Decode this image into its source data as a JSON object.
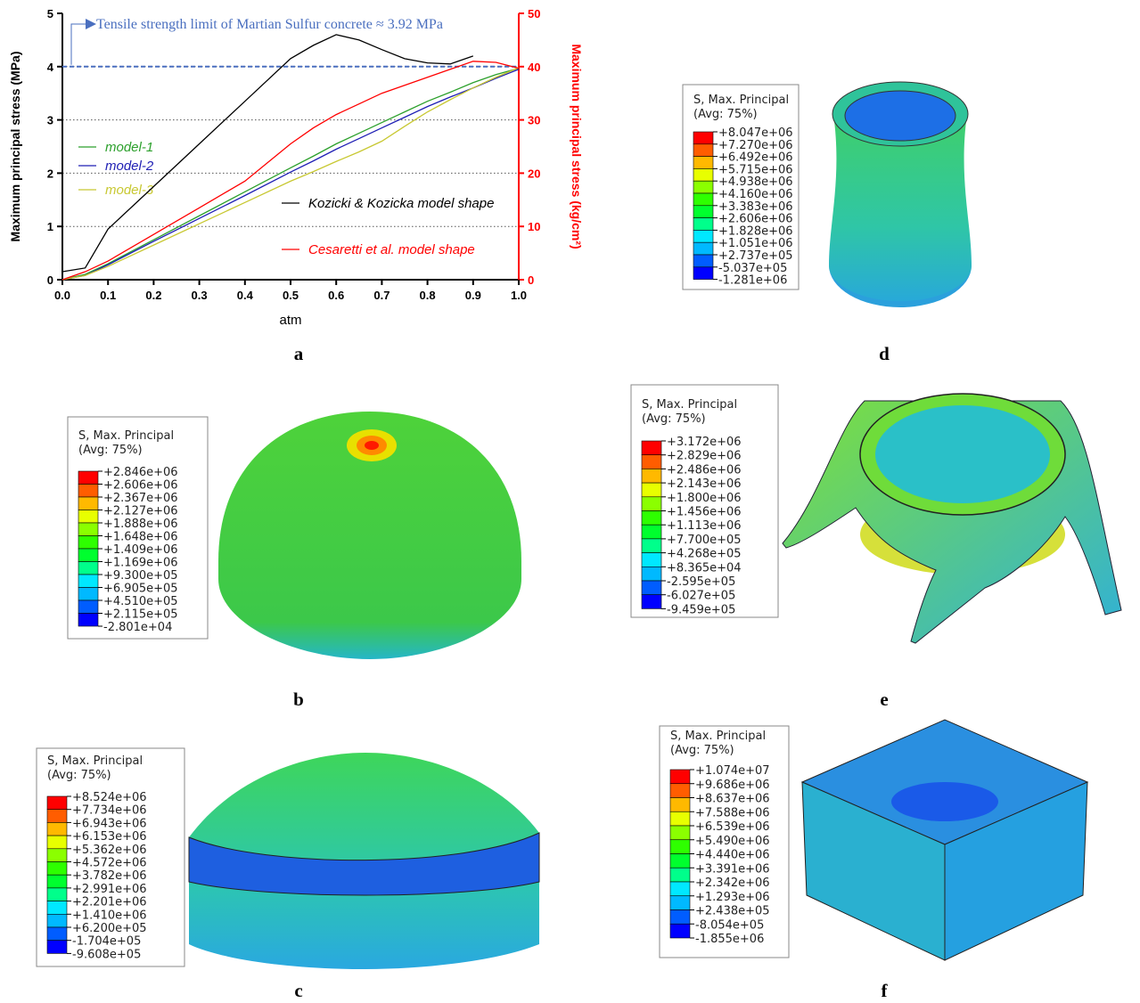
{
  "chart_data": {
    "type": "line",
    "panel_label": "a",
    "xlabel": "atm",
    "ylabel": "Maximum principal stress (MPa)",
    "y2label": "Maximum principal stress (kg/cm²)",
    "x": [
      0,
      0.05,
      0.1,
      0.2,
      0.3,
      0.4,
      0.5,
      0.55,
      0.6,
      0.65,
      0.7,
      0.75,
      0.8,
      0.85,
      0.9,
      0.95,
      1.0
    ],
    "series": [
      {
        "name": "model-1",
        "color": "#2ca02c",
        "values": [
          0,
          0.1,
          0.3,
          0.75,
          1.2,
          1.65,
          2.1,
          2.32,
          2.55,
          2.75,
          2.95,
          3.15,
          3.35,
          3.52,
          3.7,
          3.85,
          3.97
        ]
      },
      {
        "name": "model-2",
        "color": "#1f1fb4",
        "values": [
          0,
          0.08,
          0.28,
          0.72,
          1.15,
          1.58,
          2.02,
          2.23,
          2.45,
          2.65,
          2.85,
          3.05,
          3.25,
          3.43,
          3.6,
          3.78,
          3.95
        ]
      },
      {
        "name": "model-3",
        "color": "#c8c832",
        "values": [
          0,
          0.08,
          0.25,
          0.65,
          1.05,
          1.45,
          1.85,
          2.03,
          2.22,
          2.4,
          2.6,
          2.88,
          3.15,
          3.38,
          3.6,
          3.8,
          3.98
        ]
      },
      {
        "name": "Kozicki & Kozicka model shape",
        "color": "#000000",
        "values": [
          0.15,
          0.22,
          0.95,
          1.75,
          2.55,
          3.35,
          4.15,
          4.4,
          4.6,
          4.5,
          4.32,
          4.15,
          4.07,
          4.05,
          4.2,
          null,
          null
        ]
      },
      {
        "name": "Cesaretti et al. model shape",
        "color": "#ff0000",
        "values": [
          0,
          0.15,
          0.35,
          0.85,
          1.35,
          1.85,
          2.55,
          2.85,
          3.1,
          3.3,
          3.5,
          3.65,
          3.8,
          3.95,
          4.1,
          4.08,
          3.97
        ]
      }
    ],
    "reference_line": {
      "value": 4,
      "label": "Tensile strength limit of Martian Sulfur concrete ≈ 3.92 MPa",
      "color": "#4a6fbf"
    },
    "xlim": [
      0,
      1
    ],
    "ylim": [
      0,
      5
    ],
    "y2lim": [
      0,
      50
    ],
    "xticks": [
      {
        "value": 0,
        "label": "0.0"
      },
      0.1,
      0.2,
      0.3,
      0.4,
      0.5,
      0.6,
      0.7,
      0.8,
      0.9,
      {
        "value": 1,
        "label": "1.0"
      }
    ],
    "yticks": [
      0,
      1,
      2,
      3,
      4,
      5
    ],
    "y2ticks": [
      0,
      10,
      20,
      30,
      40,
      50
    ],
    "y2color": "#ff0000",
    "grid": true
  },
  "contour_colors": [
    "#ff0000",
    "#ff5d00",
    "#ffb900",
    "#e8ff00",
    "#8bff00",
    "#2eff00",
    "#00ff2e",
    "#00ff8b",
    "#00e8ff",
    "#00b9ff",
    "#005dff",
    "#0000ff"
  ],
  "contour_panels": [
    {
      "label": "d",
      "title": "S, Max. Principal",
      "subtitle": "(Avg: 75%)",
      "values": [
        "+8.047e+06",
        "+7.270e+06",
        "+6.492e+06",
        "+5.715e+06",
        "+4.938e+06",
        "+4.160e+06",
        "+3.383e+06",
        "+2.606e+06",
        "+1.828e+06",
        "+1.051e+06",
        "+2.737e+05",
        "-5.037e+05",
        "-1.281e+06"
      ]
    },
    {
      "label": "b",
      "title": "S, Max. Principal",
      "subtitle": "(Avg: 75%)",
      "values": [
        "+2.846e+06",
        "+2.606e+06",
        "+2.367e+06",
        "+2.127e+06",
        "+1.888e+06",
        "+1.648e+06",
        "+1.409e+06",
        "+1.169e+06",
        "+9.300e+05",
        "+6.905e+05",
        "+4.510e+05",
        "+2.115e+05",
        "-2.801e+04"
      ]
    },
    {
      "label": "e",
      "title": "S, Max. Principal",
      "subtitle": "(Avg: 75%)",
      "values": [
        "+3.172e+06",
        "+2.829e+06",
        "+2.486e+06",
        "+2.143e+06",
        "+1.800e+06",
        "+1.456e+06",
        "+1.113e+06",
        "+7.700e+05",
        "+4.268e+05",
        "+8.365e+04",
        "-2.595e+05",
        "-6.027e+05",
        "-9.459e+05"
      ]
    },
    {
      "label": "c",
      "title": "S, Max. Principal",
      "subtitle": "(Avg: 75%)",
      "values": [
        "+8.524e+06",
        "+7.734e+06",
        "+6.943e+06",
        "+6.153e+06",
        "+5.362e+06",
        "+4.572e+06",
        "+3.782e+06",
        "+2.991e+06",
        "+2.201e+06",
        "+1.410e+06",
        "+6.200e+05",
        "-1.704e+05",
        "-9.608e+05"
      ]
    },
    {
      "label": "f",
      "title": "S, Max. Principal",
      "subtitle": "(Avg: 75%)",
      "values": [
        "+1.074e+07",
        "+9.686e+06",
        "+8.637e+06",
        "+7.588e+06",
        "+6.539e+06",
        "+5.490e+06",
        "+4.440e+06",
        "+3.391e+06",
        "+2.342e+06",
        "+1.293e+06",
        "+2.438e+05",
        "-8.054e+05",
        "-1.855e+06"
      ]
    }
  ]
}
